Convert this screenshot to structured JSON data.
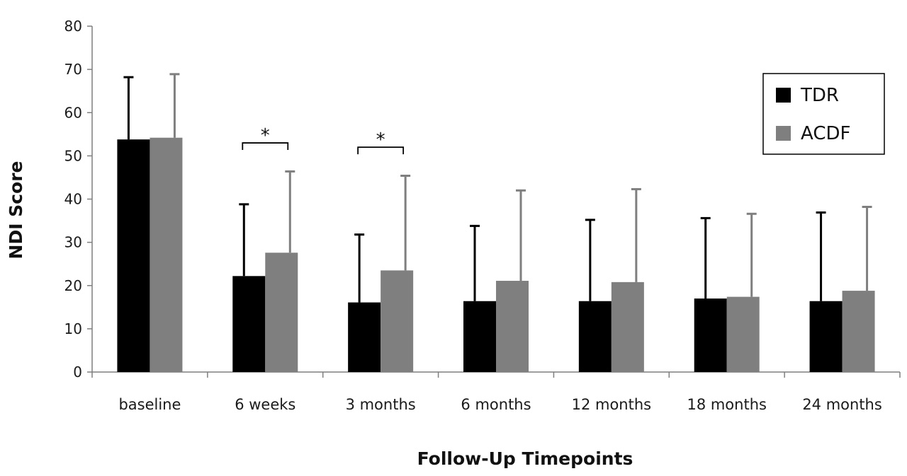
{
  "chart_data": {
    "type": "bar",
    "categories": [
      "baseline",
      "6 weeks",
      "3 months",
      "6 months",
      "12 months",
      "18 months",
      "24 months"
    ],
    "series": [
      {
        "name": "TDR",
        "color": "#000000",
        "values": [
          53.8,
          22.2,
          16.1,
          16.4,
          16.4,
          17.0,
          16.4
        ],
        "error_upper": [
          68.2,
          38.8,
          31.8,
          33.8,
          35.2,
          35.6,
          36.9
        ]
      },
      {
        "name": "ACDF",
        "color": "#7f7f7f",
        "values": [
          54.2,
          27.6,
          23.5,
          21.1,
          20.8,
          17.4,
          18.8
        ],
        "error_upper": [
          68.9,
          46.4,
          45.4,
          42.0,
          42.3,
          36.6,
          38.2
        ]
      }
    ],
    "title": "",
    "xlabel": "Follow-Up Timepoints",
    "ylabel": "NDI Score",
    "ylim": [
      0,
      80
    ],
    "yticks": [
      "0",
      "10",
      "20",
      "30",
      "40",
      "50",
      "60",
      "70",
      "80"
    ],
    "grid": false,
    "legend_position": "top-right",
    "annotations": [
      {
        "category_index": 1,
        "text": "*",
        "value": 53
      },
      {
        "category_index": 2,
        "text": "*",
        "value": 52
      }
    ]
  }
}
